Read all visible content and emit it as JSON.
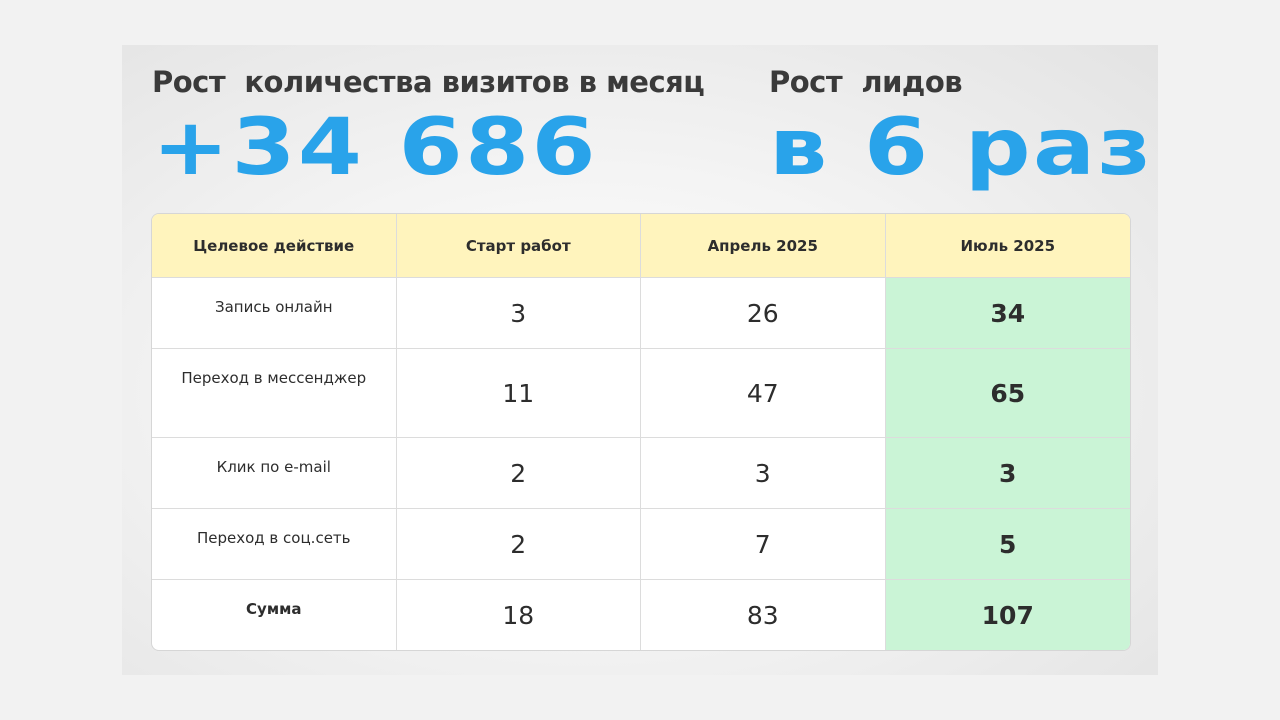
{
  "stats": [
    {
      "label": "Рост  количества визитов в месяц",
      "value": "+34 686"
    },
    {
      "label": "Рост  лидов",
      "value": "в 6 раз"
    }
  ],
  "table": {
    "header": [
      "Целевое действие",
      "Старт работ",
      "Апрель 2025",
      "Июль 2025"
    ],
    "rows": [
      [
        "Запись онлайн",
        3,
        26,
        34
      ],
      [
        "Переход в мессенджер",
        11,
        47,
        65
      ],
      [
        "Клик по e-mail",
        2,
        3,
        3
      ],
      [
        "Переход в соц.сеть",
        2,
        7,
        5
      ],
      [
        "Сумма",
        18,
        83,
        107
      ]
    ]
  }
}
